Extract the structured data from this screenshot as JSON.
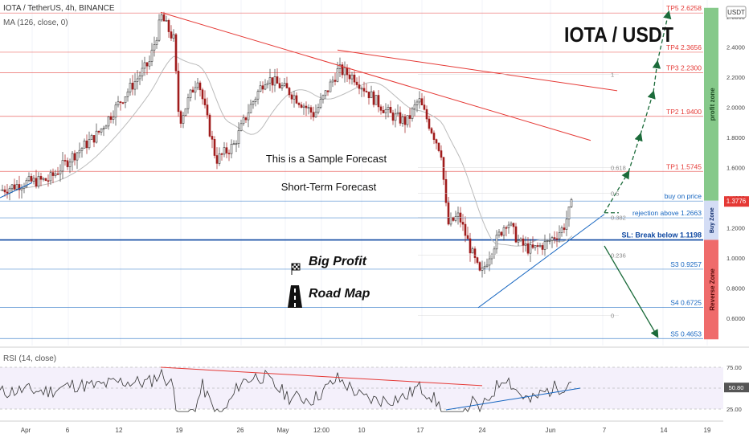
{
  "header": {
    "symbol": "IOTA / TetherUS, 4h, BINANCE",
    "ma": "MA (126, close, 0)",
    "currency": "USDT",
    "pair_title": "IOTA / USDT"
  },
  "annotations": {
    "sample": "This is a Sample Forecast",
    "short_term": "Short-Term Forecast",
    "big_profit": "Big Profit",
    "road_map": "Road Map"
  },
  "price_levels": [
    {
      "label": "TP5 2.6258",
      "value": 2.6258,
      "color": "#e53935"
    },
    {
      "label": "TP4 2.3656",
      "value": 2.3656,
      "color": "#e53935"
    },
    {
      "label": "TP3 2.2300",
      "value": 2.23,
      "color": "#e53935"
    },
    {
      "label": "TP2 1.9400",
      "value": 1.94,
      "color": "#e53935"
    },
    {
      "label": "TP1 1.5745",
      "value": 1.5745,
      "color": "#e53935"
    },
    {
      "label": "buy on price",
      "value": 1.3776,
      "color": "#1565c0"
    },
    {
      "label": "rejection above 1.2663",
      "value": 1.2663,
      "color": "#1565c0"
    },
    {
      "label": "SL: Break below 1.1198",
      "value": 1.1198,
      "color": "#0d47a1"
    },
    {
      "label": "S3 0.9257",
      "value": 0.9257,
      "color": "#1565c0"
    },
    {
      "label": "S4 0.6725",
      "value": 0.6725,
      "color": "#1565c0"
    },
    {
      "label": "S5 0.4653",
      "value": 0.4653,
      "color": "#1565c0"
    }
  ],
  "fib_labels": [
    {
      "label": "1",
      "value": 2.22
    },
    {
      "label": "0.618",
      "value": 1.6
    },
    {
      "label": "0.5",
      "value": 1.43
    },
    {
      "label": "0.382",
      "value": 1.27
    },
    {
      "label": "0.236",
      "value": 1.02
    },
    {
      "label": "0",
      "value": 0.62
    }
  ],
  "zones": {
    "profit": "profit zone",
    "buy": "Buy Zone",
    "reverse": "Reverse Zone"
  },
  "price_axis": {
    "ticks": [
      "2.6000",
      "2.4000",
      "2.2000",
      "2.0000",
      "1.8000",
      "1.6000",
      "1.4000",
      "1.2000",
      "1.0000",
      "0.8000",
      "0.6000"
    ],
    "current_price": "1.3776"
  },
  "rsi": {
    "title": "RSI (14, close)",
    "ticks": [
      "75.00",
      "50.00",
      "25.00"
    ],
    "current": "50.80"
  },
  "time_axis": [
    "Apr",
    "6",
    "12",
    "19",
    "26",
    "May",
    "12:00",
    "10",
    "17",
    "24",
    "Jun",
    "7",
    "14",
    "19"
  ],
  "colors": {
    "bull": "#3c3c3c",
    "bear": "#a01c1c",
    "resistance": "#e53935",
    "support": "#1565c0",
    "forecast": "#1b6b3a",
    "profit_zone": "#86c98a",
    "buy_zone": "#d4ddf5",
    "reverse_zone": "#ef6b6b"
  },
  "chart_data": {
    "type": "candlestick",
    "price_range": [
      0.46,
      2.66
    ],
    "rsi_range": [
      15,
      85
    ],
    "rsi_levels": [
      75,
      50,
      25
    ]
  }
}
